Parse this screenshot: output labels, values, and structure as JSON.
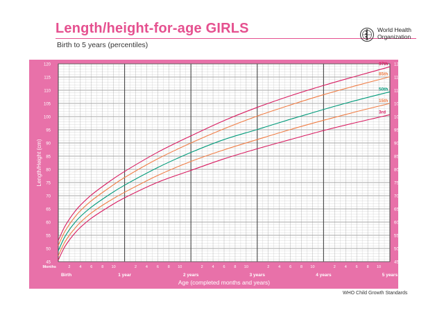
{
  "header": {
    "title": "Length/height-for-age GIRLS",
    "subtitle": "Birth to 5 years (percentiles)",
    "org_line1": "World Health",
    "org_line2": "Organization"
  },
  "footer": {
    "source": "WHO Child Growth Standards"
  },
  "colors": {
    "brand_pink": "#e5508f",
    "panel": "#e871a9"
  },
  "chart_data": {
    "type": "line",
    "ylabel": "Length/Height (cm)",
    "xlabel": "Age (completed months and years)",
    "months_label": "Months",
    "ylim": [
      45,
      120
    ],
    "y_ticks": [
      45,
      50,
      55,
      60,
      65,
      70,
      75,
      80,
      85,
      90,
      95,
      100,
      105,
      110,
      115,
      120
    ],
    "xlim": [
      0,
      60
    ],
    "x_month_ticks": [
      "2",
      "4",
      "6",
      "8",
      "10",
      "2",
      "4",
      "6",
      "8",
      "10",
      "2",
      "4",
      "6",
      "8",
      "10",
      "2",
      "4",
      "6",
      "8",
      "10",
      "2",
      "4",
      "6",
      "8",
      "10"
    ],
    "x_year_labels": [
      "Birth",
      "1 year",
      "2 years",
      "3 years",
      "4 years",
      "5 years"
    ],
    "grid": true,
    "x": [
      0,
      1,
      2,
      3,
      4,
      6,
      9,
      12,
      18,
      24,
      30,
      36,
      42,
      48,
      54,
      60
    ],
    "series": [
      {
        "name": "97th",
        "color": "#d81b60",
        "values": [
          53.0,
          57.6,
          61.1,
          64.0,
          66.4,
          70.3,
          75.0,
          79.2,
          86.5,
          92.7,
          98.5,
          103.5,
          107.9,
          111.8,
          115.4,
          118.9
        ]
      },
      {
        "name": "85th",
        "color": "#f07d45",
        "values": [
          51.1,
          55.7,
          59.1,
          61.9,
          64.3,
          68.1,
          72.7,
          76.9,
          84.0,
          90.0,
          95.4,
          100.2,
          104.4,
          108.3,
          111.8,
          115.1
        ]
      },
      {
        "name": "50th",
        "color": "#009a7a",
        "values": [
          49.1,
          53.7,
          57.1,
          59.8,
          62.1,
          65.7,
          70.1,
          74.0,
          80.7,
          86.4,
          91.3,
          95.1,
          99.0,
          102.7,
          106.2,
          109.4
        ]
      },
      {
        "name": "15th",
        "color": "#f07d45",
        "values": [
          47.2,
          51.7,
          55.0,
          57.6,
          59.9,
          63.5,
          67.7,
          71.3,
          77.7,
          83.0,
          87.4,
          91.3,
          95.1,
          98.6,
          101.9,
          105.0
        ]
      },
      {
        "name": "3rd",
        "color": "#d81b60",
        "values": [
          45.6,
          50.0,
          53.2,
          55.8,
          58.0,
          61.5,
          65.6,
          69.2,
          75.1,
          79.6,
          84.0,
          87.8,
          91.3,
          94.7,
          97.8,
          100.7
        ]
      }
    ]
  }
}
